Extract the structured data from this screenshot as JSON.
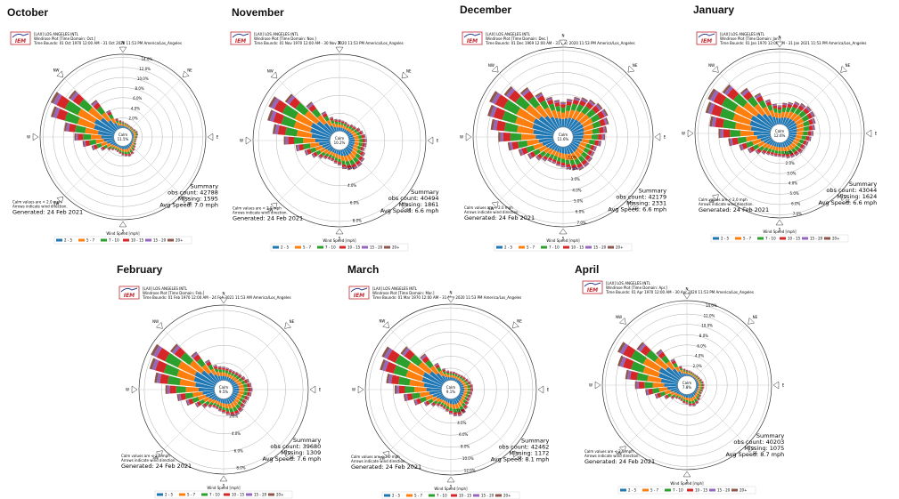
{
  "colors": {
    "bins": [
      "#1f77b4",
      "#ff7f0e",
      "#2ca02c",
      "#d62728",
      "#9467bd",
      "#8c564b"
    ],
    "ring": "#999999",
    "spoke": "#bbbbbb",
    "logo_red": "#c0272d",
    "logo_blue": "#2b3f8f"
  },
  "legend": {
    "title": "Wind Speed [mph]",
    "bins": [
      "2 - 5",
      "5 - 7",
      "7 - 10",
      "10 - 15",
      "15 - 20",
      "20+"
    ]
  },
  "compass": [
    "N",
    "NE",
    "E",
    "SE",
    "S",
    "SW",
    "W",
    "NW"
  ],
  "calm_note": [
    "Calm values are < 2.0 mph",
    "Arrows indicate wind direction."
  ],
  "logo_text": "IEM",
  "summary_label": "Summary",
  "calm_label": "Calm",
  "chart_data": [
    {
      "type": "windrose",
      "month": "October",
      "station": "[LAX] LOS ANGELES INTL",
      "plot_title": "Windrose Plot [Time Domain: Oct.]",
      "time_bounds": "Time Bounds: 01 Oct 1970 12:00 AM - 31 Oct 2020 11:53 PM America/Los_Angeles",
      "calm_pct": "11.5%",
      "rlabels": [
        "2.0%",
        "4.0%",
        "6.0%",
        "8.0%",
        "10.0%",
        "12.0%",
        "14.0%"
      ],
      "rlabel_side": "ne",
      "obs_count": "obs count: 42788",
      "missing": "Missing: 1595",
      "avg_speed": "Avg Speed: 7.0 mph",
      "generated": "Generated: 24 Feb 2021",
      "max_pct": 14,
      "dir_totals": [
        1.2,
        1.0,
        0.9,
        0.8,
        0.8,
        0.8,
        1.0,
        1.2,
        1.2,
        1.0,
        0.9,
        0.9,
        1.1,
        1.3,
        1.6,
        2.0,
        2.2,
        2.0,
        1.8,
        1.5,
        1.3,
        1.2,
        1.5,
        2.0,
        3.0,
        4.5,
        6.0,
        7.5,
        9.5,
        12.5,
        13.5,
        11.0,
        7.0,
        4.0,
        2.0,
        1.5
      ]
    },
    {
      "type": "windrose",
      "month": "November",
      "station": "[LAX] LOS ANGELES INTL",
      "plot_title": "Windrose Plot [Time Domain: Nov.]",
      "time_bounds": "Time Bounds: 01 Nov 1970 12:00 AM - 30 Nov 2020 11:53 PM America/Los_Angeles",
      "calm_pct": "10.2%",
      "rlabels": [
        "2.0%",
        "4.0%",
        "6.0%",
        "8.0%"
      ],
      "rlabel_side": "s",
      "obs_count": "obs count: 40494",
      "missing": "Missing: 1861",
      "avg_speed": "Avg Speed: 6.6 mph",
      "generated": "Generated: 24 Feb 2021",
      "max_pct": 10,
      "dir_totals": [
        1.5,
        1.4,
        1.3,
        1.2,
        1.4,
        1.5,
        1.8,
        2.0,
        2.2,
        2.3,
        2.3,
        2.2,
        2.5,
        2.8,
        3.0,
        3.0,
        2.8,
        2.5,
        2.0,
        1.8,
        1.6,
        1.6,
        1.8,
        2.2,
        2.8,
        3.5,
        4.5,
        6.0,
        7.5,
        8.5,
        9.0,
        7.5,
        5.0,
        3.0,
        2.0,
        1.6
      ]
    },
    {
      "type": "windrose",
      "month": "December",
      "station": "[LAX] LOS ANGELES INTL",
      "plot_title": "Windrose Plot [Time Domain: Dec.]",
      "time_bounds": "Time Bounds: 01 Dec 1969 12:00 AM - 31 Dec 2020 11:53 PM America/Los_Angeles",
      "calm_pct": "11.6%",
      "rlabels": [
        "1.0%",
        "2.0%",
        "3.0%",
        "4.0%",
        "5.0%",
        "6.0%",
        "7.0%"
      ],
      "rlabel_side": "s",
      "obs_count": "obs count: 42179",
      "missing": "Missing: 2331",
      "avg_speed": "Avg Speed: 6.6 mph",
      "generated": "Generated: 24 Feb 2021",
      "max_pct": 7,
      "dir_totals": [
        2.2,
        2.5,
        2.8,
        3.0,
        3.2,
        3.4,
        3.5,
        3.3,
        3.0,
        2.8,
        2.5,
        2.2,
        2.2,
        2.3,
        2.4,
        2.4,
        2.2,
        2.0,
        1.8,
        1.7,
        1.6,
        1.6,
        1.8,
        2.1,
        2.6,
        3.2,
        4.0,
        4.8,
        5.5,
        6.0,
        6.3,
        5.5,
        4.5,
        3.5,
        2.8,
        2.4
      ]
    },
    {
      "type": "windrose",
      "month": "January",
      "station": "[LAX] LOS ANGELES INTL",
      "plot_title": "Windrose Plot [Time Domain: Jan.]",
      "time_bounds": "Time Bounds: 01 Jan 1970 12:00 AM - 31 Jan 2021 11:53 PM America/Los_Angeles",
      "calm_pct": "12.6%",
      "rlabels": [
        "1.0%",
        "2.0%",
        "3.0%",
        "4.0%",
        "5.0%",
        "6.0%",
        "7.0%"
      ],
      "rlabel_side": "s",
      "obs_count": "obs count: 43044",
      "missing": "Missing: 1624",
      "avg_speed": "Avg Speed: 6.6 mph",
      "generated": "Generated: 24 Feb 2021",
      "max_pct": 8,
      "dir_totals": [
        2.0,
        2.3,
        2.5,
        2.8,
        3.0,
        3.2,
        3.2,
        3.0,
        2.8,
        2.6,
        2.4,
        2.2,
        2.1,
        2.1,
        2.0,
        1.9,
        1.8,
        1.6,
        1.5,
        1.5,
        1.5,
        1.6,
        1.8,
        2.2,
        2.8,
        3.5,
        4.5,
        5.5,
        6.5,
        7.2,
        7.5,
        6.5,
        5.0,
        3.8,
        2.8,
        2.2
      ]
    },
    {
      "type": "windrose",
      "month": "February",
      "station": "[LAX] LOS ANGELES INTL",
      "plot_title": "Windrose Plot [Time Domain: Feb.]",
      "time_bounds": "Time Bounds: 01 Feb 1970 12:00 AM - 24 Feb 2021 11:53 AM America/Los_Angeles",
      "calm_pct": "9.5%",
      "rlabels": [
        "2.0%",
        "4.0%",
        "6.0%",
        "8.0%"
      ],
      "rlabel_side": "s",
      "obs_count": "obs count: 39680",
      "missing": "Missing: 1309",
      "avg_speed": "Avg Speed: 7.6 mph",
      "generated": "Generated: 24 Feb 2021",
      "max_pct": 10,
      "dir_totals": [
        1.8,
        1.7,
        1.6,
        1.6,
        1.7,
        1.8,
        2.0,
        2.3,
        2.5,
        2.6,
        2.5,
        2.3,
        2.2,
        2.3,
        2.5,
        2.6,
        2.5,
        2.2,
        1.9,
        1.7,
        1.5,
        1.5,
        1.8,
        2.3,
        3.0,
        4.0,
        5.0,
        6.5,
        8.0,
        9.0,
        9.5,
        7.5,
        5.0,
        3.2,
        2.2,
        1.9
      ]
    },
    {
      "type": "windrose",
      "month": "March",
      "station": "[LAX] LOS ANGELES INTL",
      "plot_title": "Windrose Plot [Time Domain: Mar.]",
      "time_bounds": "Time Bounds: 01 Mar 1970 12:00 AM - 31 Mar 2020 11:53 PM America/Los_Angeles",
      "calm_pct": "9.1%",
      "rlabels": [
        "2.0%",
        "4.0%",
        "6.0%",
        "8.0%",
        "10.0%",
        "12.0%"
      ],
      "rlabel_side": "s",
      "obs_count": "obs count: 42462",
      "missing": "Missing: 1172",
      "avg_speed": "Avg Speed: 8.1 mph",
      "generated": "Generated: 24 Feb 2021",
      "max_pct": 13,
      "dir_totals": [
        1.5,
        1.5,
        1.4,
        1.4,
        1.5,
        1.6,
        1.8,
        2.0,
        2.2,
        2.2,
        2.1,
        2.0,
        2.0,
        2.2,
        2.6,
        3.0,
        3.2,
        3.0,
        2.6,
        2.2,
        1.9,
        1.8,
        2.0,
        2.6,
        3.5,
        5.0,
        6.5,
        8.0,
        9.5,
        11.0,
        11.5,
        9.0,
        6.0,
        3.5,
        2.2,
        1.7
      ]
    },
    {
      "type": "windrose",
      "month": "April",
      "station": "[LAX] LOS ANGELES INTL",
      "plot_title": "Windrose Plot [Time Domain: Apr.]",
      "time_bounds": "Time Bounds: 01 Apr 1970 12:00 AM - 30 Apr 2020 11:53 PM America/Los_Angeles",
      "calm_pct": "7.8%",
      "rlabels": [
        "2.0%",
        "4.0%",
        "6.0%",
        "8.0%",
        "10.0%",
        "12.0%",
        "14.0%"
      ],
      "rlabel_side": "ne",
      "obs_count": "obs count: 40203",
      "missing": "Missing: 1075",
      "avg_speed": "Avg Speed: 8.7 mph",
      "generated": "Generated: 24 Feb 2021",
      "max_pct": 15,
      "dir_totals": [
        1.2,
        1.1,
        1.0,
        0.9,
        0.9,
        1.0,
        1.1,
        1.3,
        1.5,
        1.6,
        1.6,
        1.5,
        1.5,
        1.7,
        2.0,
        2.4,
        2.6,
        2.4,
        2.0,
        1.8,
        1.5,
        1.4,
        1.6,
        2.2,
        3.2,
        4.8,
        6.5,
        8.5,
        10.5,
        12.5,
        13.5,
        10.5,
        7.0,
        4.0,
        2.2,
        1.5
      ]
    }
  ]
}
